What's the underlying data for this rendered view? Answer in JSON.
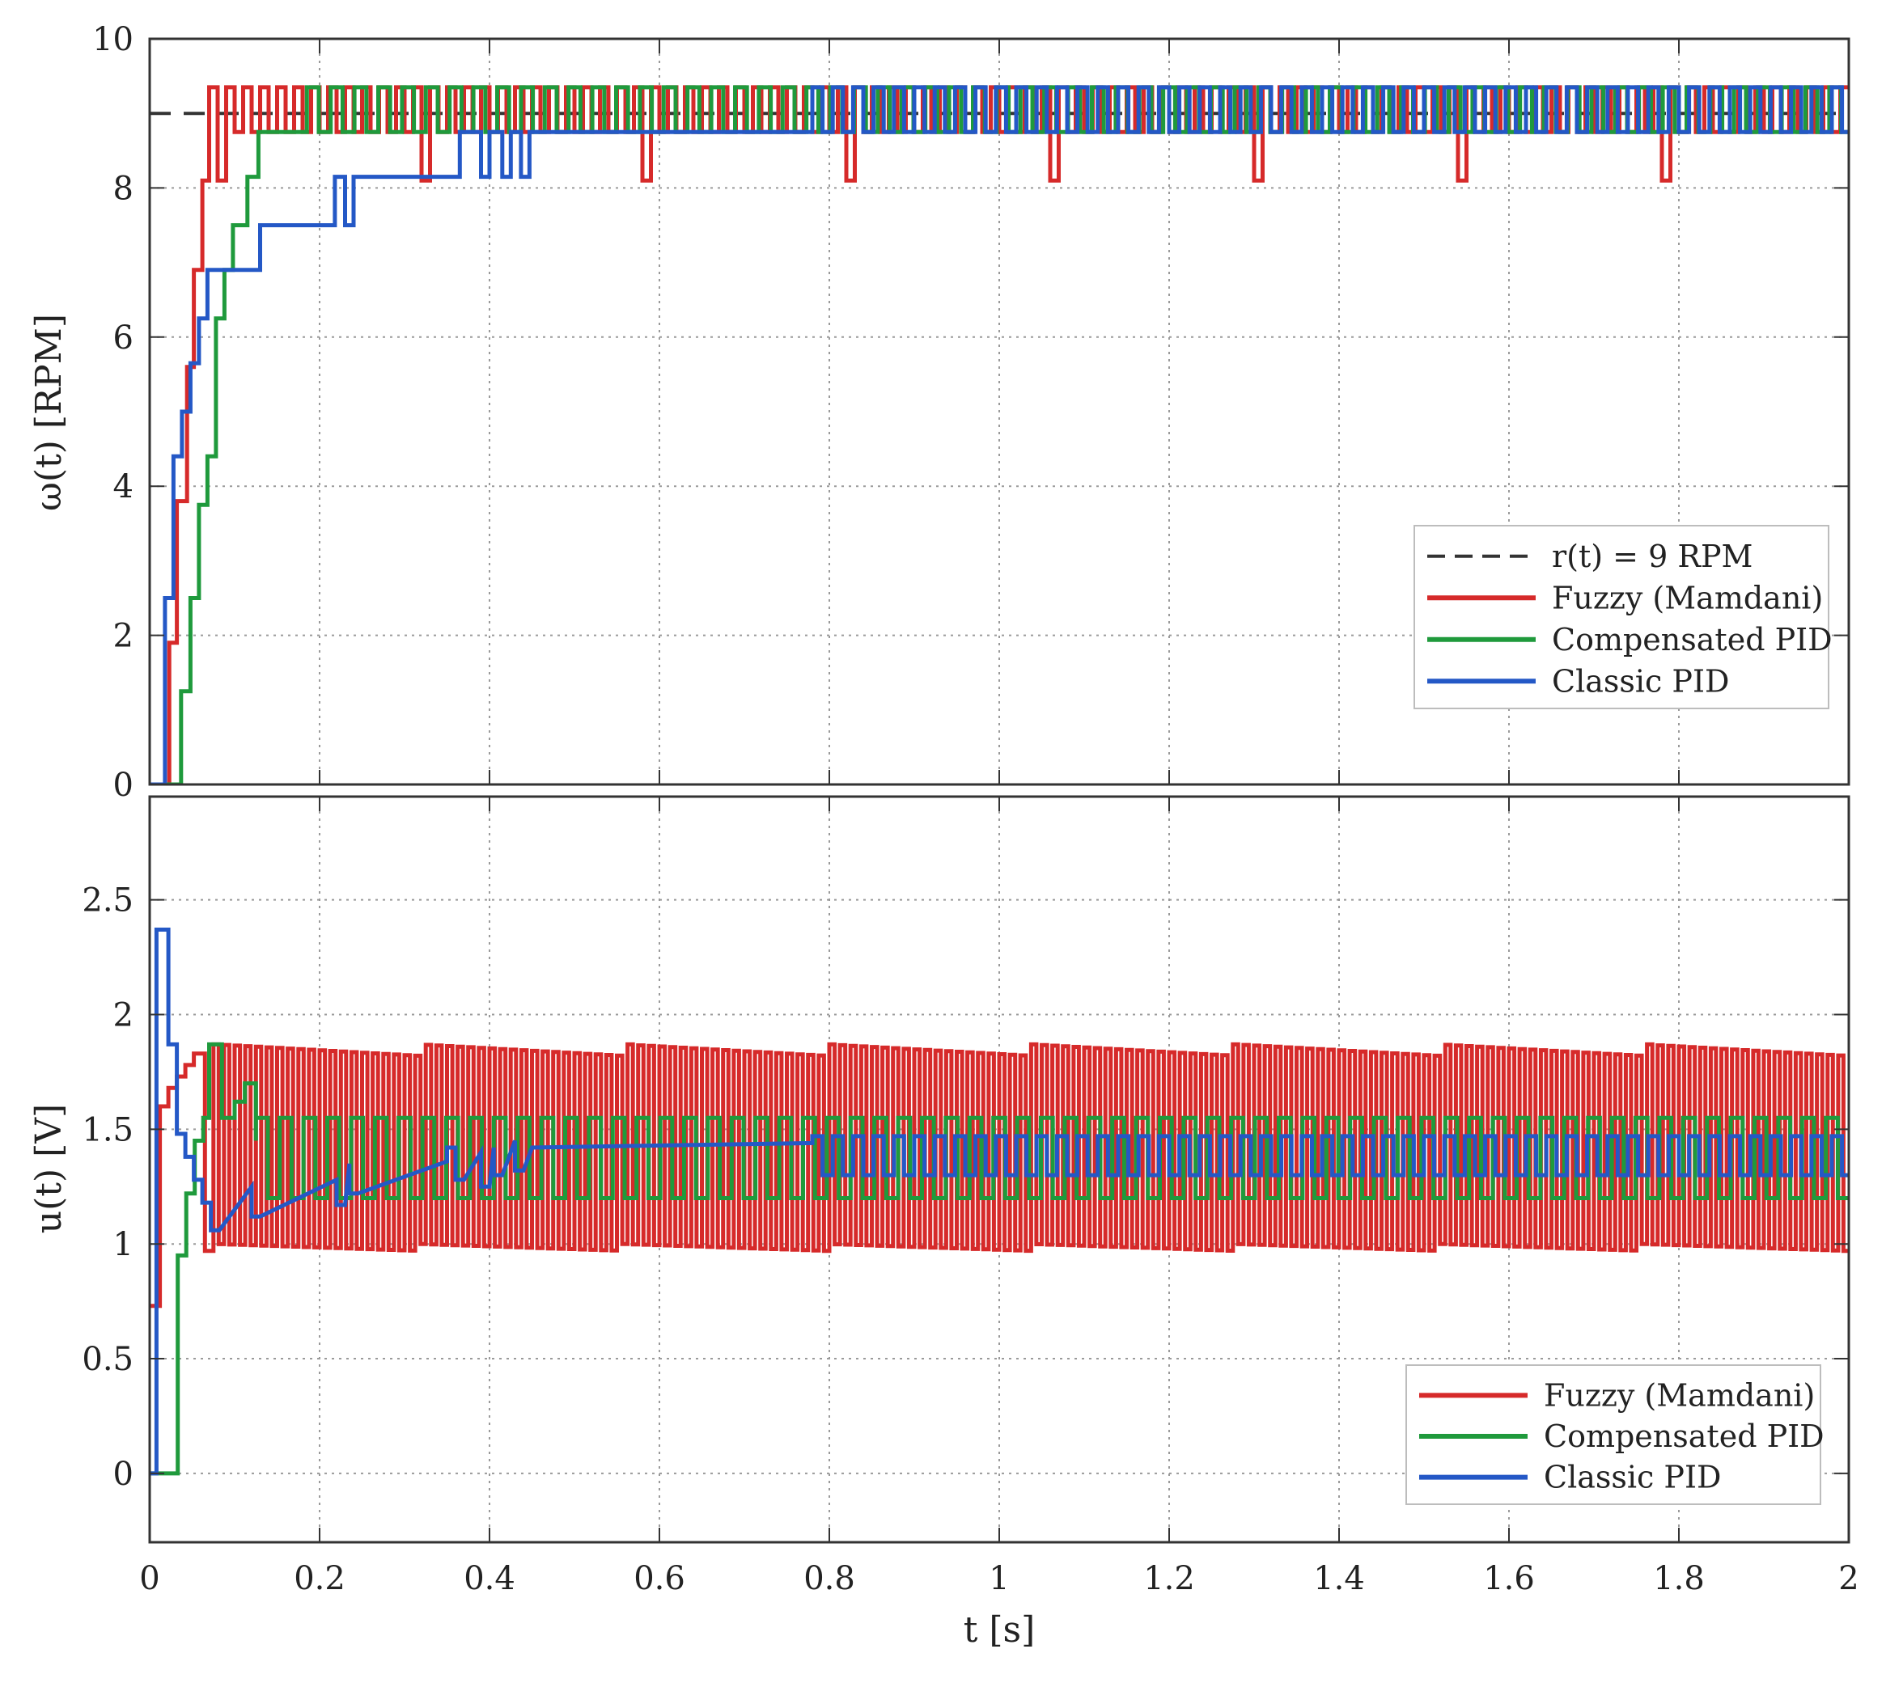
{
  "chart_data": [
    {
      "type": "line",
      "panel": "top",
      "ylabel": "ω(t)  [RPM]",
      "xlabel": "",
      "xlim": [
        0,
        2
      ],
      "ylim": [
        0,
        10
      ],
      "xticks": [
        0,
        0.2,
        0.4,
        0.6,
        0.8,
        1,
        1.2,
        1.4,
        1.6,
        1.8,
        2
      ],
      "yticks": [
        0,
        2,
        4,
        6,
        8,
        10
      ],
      "ytick_labels": [
        "0",
        "2",
        "4",
        "6",
        "8",
        "10"
      ],
      "grid": true,
      "legend_position": "right, lower-middle",
      "reference": {
        "name": "r(t) = 9  RPM",
        "value": 9,
        "color": "#333333",
        "dashed": true
      },
      "series": [
        {
          "name": "Fuzzy  (Mamdani)",
          "color": "#d62a2a",
          "step": true,
          "points": [
            [
              0,
              0
            ],
            [
              0.023,
              0
            ],
            [
              0.023,
              1.9
            ],
            [
              0.032,
              1.9
            ],
            [
              0.032,
              3.8
            ],
            [
              0.044,
              3.8
            ],
            [
              0.044,
              5.6
            ],
            [
              0.052,
              5.6
            ],
            [
              0.052,
              6.9
            ],
            [
              0.062,
              6.9
            ],
            [
              0.062,
              8.1
            ],
            [
              0.07,
              8.1
            ],
            [
              0.07,
              9.35
            ]
          ],
          "steady": {
            "t_start": 0.07,
            "t_end": 2.0,
            "high": 9.35,
            "low": 8.75,
            "period": 0.02,
            "dip_value": 8.1,
            "dip_times": [
              0.075,
              0.32,
              0.57,
              0.81,
              1.06,
              1.3,
              1.54,
              1.78
            ]
          }
        },
        {
          "name": "Compensated  PID",
          "color": "#1f9a3c",
          "step": true,
          "points": [
            [
              0,
              0
            ],
            [
              0.037,
              0
            ],
            [
              0.037,
              1.25
            ],
            [
              0.048,
              1.25
            ],
            [
              0.048,
              2.5
            ],
            [
              0.058,
              2.5
            ],
            [
              0.058,
              3.75
            ],
            [
              0.068,
              3.75
            ],
            [
              0.068,
              4.4
            ],
            [
              0.078,
              4.4
            ],
            [
              0.078,
              6.25
            ],
            [
              0.088,
              6.25
            ],
            [
              0.088,
              6.9
            ],
            [
              0.098,
              6.9
            ],
            [
              0.098,
              7.5
            ],
            [
              0.115,
              7.5
            ],
            [
              0.115,
              8.15
            ],
            [
              0.128,
              8.15
            ],
            [
              0.128,
              8.75
            ],
            [
              0.185,
              8.75
            ],
            [
              0.185,
              9.35
            ]
          ],
          "steady": {
            "t_start": 0.185,
            "t_end": 2.0,
            "high": 9.35,
            "low": 8.75,
            "period": 0.028
          }
        },
        {
          "name": "Classic  PID",
          "color": "#2458c6",
          "step": true,
          "points": [
            [
              0,
              0
            ],
            [
              0.018,
              0
            ],
            [
              0.018,
              2.5
            ],
            [
              0.028,
              2.5
            ],
            [
              0.028,
              4.4
            ],
            [
              0.038,
              4.4
            ],
            [
              0.038,
              5.0
            ],
            [
              0.048,
              5.0
            ],
            [
              0.048,
              5.65
            ],
            [
              0.058,
              5.65
            ],
            [
              0.058,
              6.25
            ],
            [
              0.068,
              6.25
            ],
            [
              0.068,
              6.9
            ],
            [
              0.13,
              6.9
            ],
            [
              0.13,
              7.5
            ],
            [
              0.218,
              7.5
            ],
            [
              0.218,
              8.15
            ],
            [
              0.23,
              8.15
            ],
            [
              0.23,
              7.5
            ],
            [
              0.24,
              7.5
            ],
            [
              0.24,
              8.15
            ],
            [
              0.365,
              8.15
            ],
            [
              0.365,
              8.75
            ],
            [
              0.39,
              8.75
            ],
            [
              0.39,
              8.15
            ],
            [
              0.4,
              8.15
            ],
            [
              0.4,
              8.75
            ],
            [
              0.415,
              8.75
            ],
            [
              0.415,
              8.15
            ],
            [
              0.425,
              8.15
            ],
            [
              0.425,
              8.75
            ],
            [
              0.437,
              8.75
            ],
            [
              0.437,
              8.15
            ],
            [
              0.447,
              8.15
            ],
            [
              0.447,
              8.75
            ],
            [
              0.78,
              8.75
            ]
          ],
          "steady": {
            "t_start": 0.78,
            "t_end": 2.0,
            "high": 9.35,
            "low": 8.75,
            "period": 0.024
          }
        }
      ]
    },
    {
      "type": "line",
      "panel": "bottom",
      "ylabel": "u(t)  [V]",
      "xlabel": "t  [s]",
      "xlim": [
        0,
        2
      ],
      "ylim": [
        -0.3,
        2.95
      ],
      "xticks": [
        0,
        0.2,
        0.4,
        0.6,
        0.8,
        1,
        1.2,
        1.4,
        1.6,
        1.8,
        2
      ],
      "xtick_labels": [
        "0",
        "0.2",
        "0.4",
        "0.6",
        "0.8",
        "1",
        "1.2",
        "1.4",
        "1.6",
        "1.8",
        "2"
      ],
      "yticks": [
        0,
        0.5,
        1,
        1.5,
        2,
        2.5
      ],
      "ytick_labels": [
        "0",
        "0.5",
        "1",
        "1.5",
        "2",
        "2.5"
      ],
      "grid": true,
      "legend_position": "bottom-right",
      "series": [
        {
          "name": "Fuzzy  (Mamdani)",
          "color": "#d62a2a",
          "step": true,
          "points": [
            [
              0,
              0.73
            ],
            [
              0.012,
              0.73
            ],
            [
              0.012,
              1.6
            ],
            [
              0.022,
              1.6
            ],
            [
              0.022,
              1.68
            ],
            [
              0.032,
              1.68
            ],
            [
              0.032,
              1.73
            ],
            [
              0.042,
              1.73
            ],
            [
              0.042,
              1.78
            ],
            [
              0.052,
              1.78
            ],
            [
              0.052,
              1.83
            ],
            [
              0.065,
              1.83
            ],
            [
              0.065,
              0.97
            ],
            [
              0.075,
              0.97
            ],
            [
              0.075,
              1.87
            ]
          ],
          "steady": {
            "t_start": 0.075,
            "t_end": 2.0,
            "high_start": 1.87,
            "high_end": 1.82,
            "low_start": 1.0,
            "low_end": 0.97,
            "period": 0.0125,
            "segment": 0.24
          }
        },
        {
          "name": "Compensated  PID",
          "color": "#1f9a3c",
          "step": true,
          "points": [
            [
              0,
              0
            ],
            [
              0.033,
              0
            ],
            [
              0.033,
              0.95
            ],
            [
              0.043,
              0.95
            ],
            [
              0.043,
              1.22
            ],
            [
              0.053,
              1.22
            ],
            [
              0.053,
              1.45
            ],
            [
              0.063,
              1.45
            ],
            [
              0.063,
              1.55
            ],
            [
              0.07,
              1.55
            ],
            [
              0.07,
              1.87
            ],
            [
              0.085,
              1.87
            ],
            [
              0.085,
              1.55
            ],
            [
              0.1,
              1.55
            ],
            [
              0.1,
              1.62
            ],
            [
              0.112,
              1.62
            ],
            [
              0.112,
              1.7
            ],
            [
              0.125,
              1.7
            ],
            [
              0.125,
              1.45
            ]
          ],
          "steady": {
            "t_start": 0.125,
            "t_end": 2.0,
            "high": 1.55,
            "low": 1.2,
            "period": 0.028
          }
        },
        {
          "name": "Classic  PID",
          "color": "#2458c6",
          "step": true,
          "points": [
            [
              0,
              0
            ],
            [
              0.008,
              0
            ],
            [
              0.008,
              2.37
            ],
            [
              0.022,
              2.37
            ],
            [
              0.022,
              1.87
            ],
            [
              0.032,
              1.87
            ],
            [
              0.032,
              1.48
            ],
            [
              0.042,
              1.48
            ],
            [
              0.042,
              1.38
            ],
            [
              0.052,
              1.38
            ],
            [
              0.052,
              1.28
            ],
            [
              0.062,
              1.28
            ],
            [
              0.062,
              1.18
            ],
            [
              0.072,
              1.18
            ],
            [
              0.072,
              1.06
            ],
            [
              0.082,
              1.06
            ],
            [
              0.12,
              1.25
            ],
            [
              0.12,
              1.12
            ],
            [
              0.13,
              1.12
            ],
            [
              0.22,
              1.28
            ],
            [
              0.22,
              1.17
            ],
            [
              0.23,
              1.17
            ],
            [
              0.235,
              1.35
            ],
            [
              0.235,
              1.22
            ],
            [
              0.245,
              1.22
            ],
            [
              0.35,
              1.36
            ],
            [
              0.35,
              1.42
            ],
            [
              0.36,
              1.42
            ],
            [
              0.36,
              1.28
            ],
            [
              0.37,
              1.28
            ],
            [
              0.39,
              1.4
            ],
            [
              0.39,
              1.25
            ],
            [
              0.4,
              1.25
            ],
            [
              0.405,
              1.42
            ],
            [
              0.405,
              1.3
            ],
            [
              0.415,
              1.3
            ],
            [
              0.43,
              1.45
            ],
            [
              0.43,
              1.32
            ],
            [
              0.44,
              1.32
            ],
            [
              0.45,
              1.42
            ],
            [
              0.78,
              1.44
            ],
            [
              0.78,
              1.45
            ]
          ],
          "steady": {
            "t_start": 0.78,
            "t_end": 2.0,
            "high": 1.47,
            "low": 1.3,
            "period": 0.024
          }
        }
      ]
    }
  ],
  "legend_top": [
    {
      "label": "r(t) = 9  RPM",
      "color": "#333333",
      "dashed": true
    },
    {
      "label": "Fuzzy  (Mamdani)",
      "color": "#d62a2a",
      "dashed": false
    },
    {
      "label": "Compensated  PID",
      "color": "#1f9a3c",
      "dashed": false
    },
    {
      "label": "Classic  PID",
      "color": "#2458c6",
      "dashed": false
    }
  ],
  "legend_bottom": [
    {
      "label": "Fuzzy  (Mamdani)",
      "color": "#d62a2a",
      "dashed": false
    },
    {
      "label": "Compensated  PID",
      "color": "#1f9a3c",
      "dashed": false
    },
    {
      "label": "Classic  PID",
      "color": "#2458c6",
      "dashed": false
    }
  ]
}
